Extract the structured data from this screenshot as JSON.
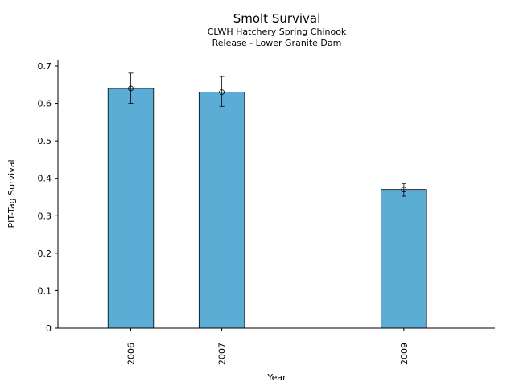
{
  "chart_data": {
    "type": "bar",
    "title": "Smolt Survival",
    "subtitle_lines": [
      "CLWH Hatchery Spring Chinook",
      "Release - Lower Granite Dam"
    ],
    "xlabel": "Year",
    "ylabel": "PIT-Tag Survival",
    "x": [
      2006,
      2007,
      2009
    ],
    "x_tick_labels": [
      "2006",
      "2007",
      "2009"
    ],
    "values": [
      0.64,
      0.63,
      0.37
    ],
    "error_low": [
      0.6,
      0.592,
      0.352
    ],
    "error_high": [
      0.681,
      0.672,
      0.386
    ],
    "y_ticks": [
      0,
      0.1,
      0.2,
      0.3,
      0.4,
      0.5,
      0.6,
      0.7
    ],
    "y_tick_labels": [
      "0",
      "0.1",
      "0.2",
      "0.3",
      "0.4",
      "0.5",
      "0.6",
      "0.7"
    ],
    "ylim": [
      0,
      0.7
    ],
    "xlim": [
      2005.2,
      2010
    ],
    "grid": false,
    "legend": "none",
    "bar_color": "#5badd6",
    "edge_color": "#000000"
  }
}
